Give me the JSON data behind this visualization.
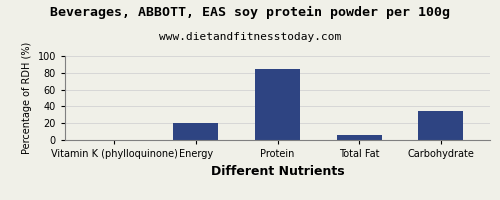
{
  "title": "Beverages, ABBOTT, EAS soy protein powder per 100g",
  "subtitle": "www.dietandfitnesstoday.com",
  "xlabel": "Different Nutrients",
  "ylabel": "Percentage of RDH (%)",
  "categories": [
    "Vitamin K (phylloquinone)",
    "Energy",
    "Protein",
    "Total Fat",
    "Carbohydrate"
  ],
  "values": [
    0,
    20,
    84,
    6,
    35
  ],
  "bar_color": "#2e4482",
  "ylim": [
    0,
    100
  ],
  "yticks": [
    0,
    20,
    40,
    60,
    80,
    100
  ],
  "title_fontsize": 9.5,
  "subtitle_fontsize": 8,
  "xlabel_fontsize": 9,
  "ylabel_fontsize": 7,
  "tick_fontsize": 7,
  "background_color": "#f0f0e8"
}
